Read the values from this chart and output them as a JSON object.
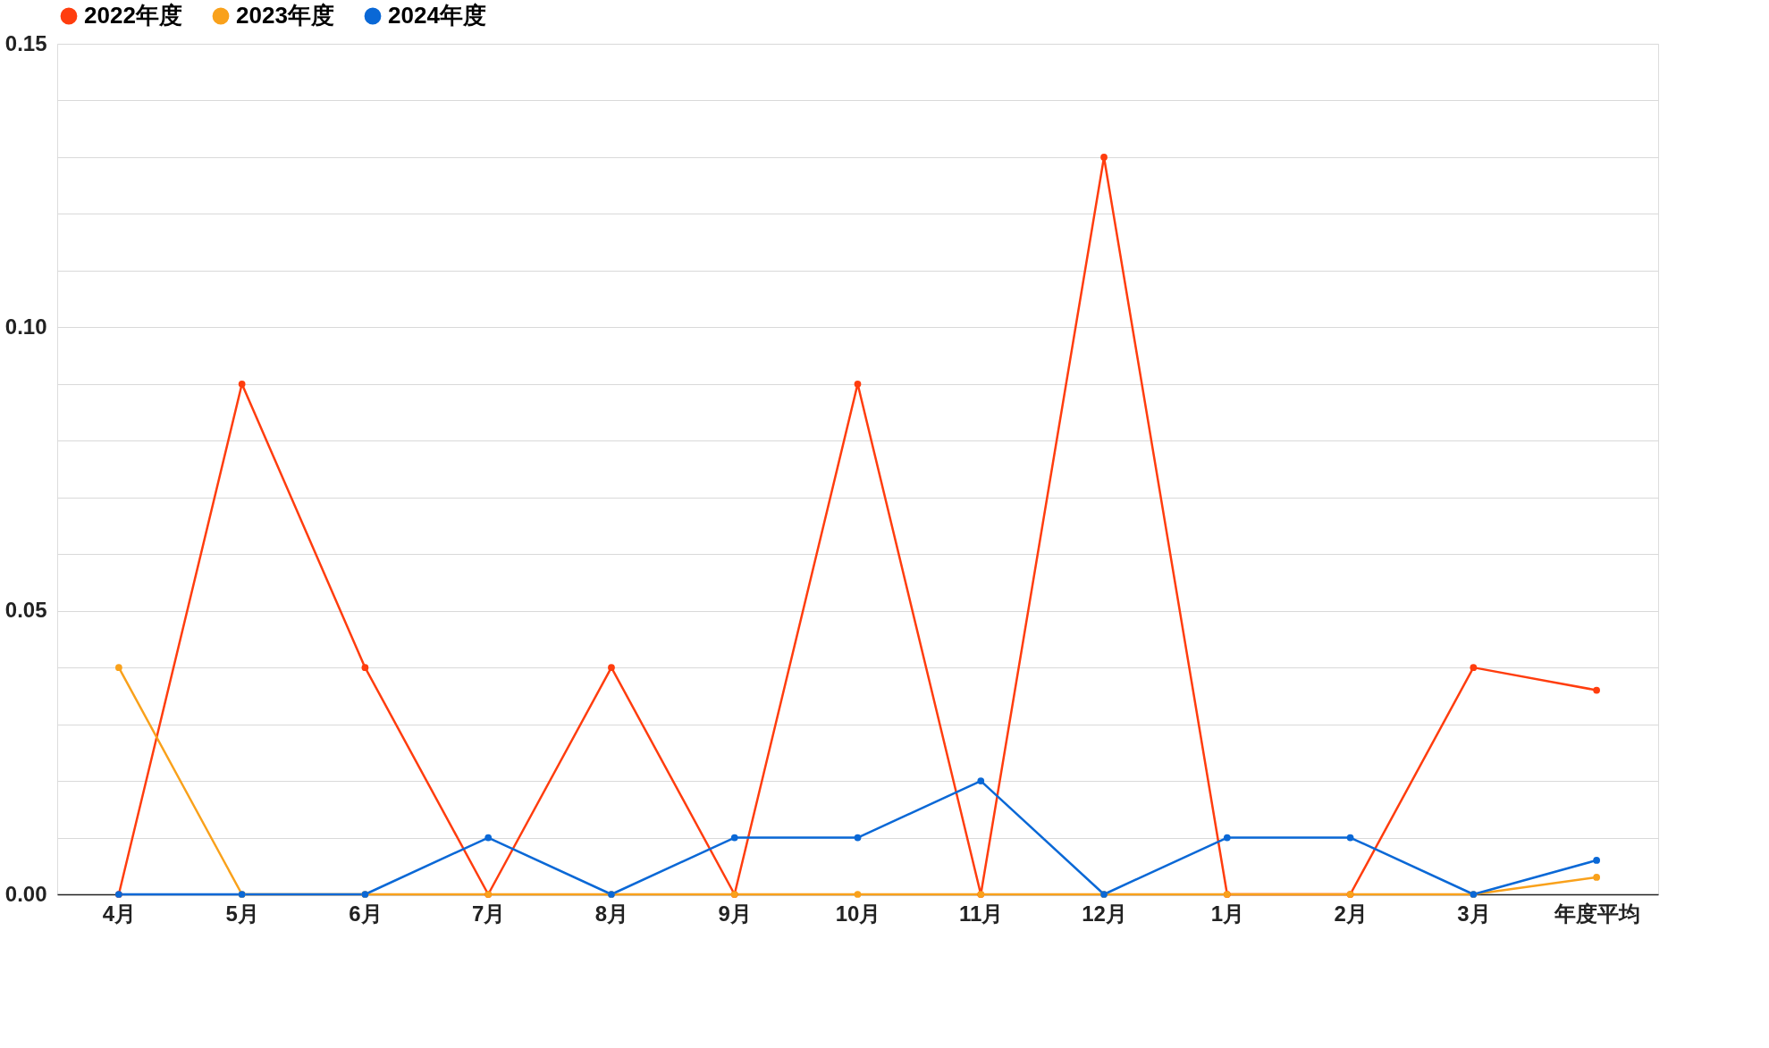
{
  "chart_data": {
    "type": "line",
    "categories": [
      "4月",
      "5月",
      "6月",
      "7月",
      "8月",
      "9月",
      "10月",
      "11月",
      "12月",
      "1月",
      "2月",
      "3月",
      "年度平均"
    ],
    "series": [
      {
        "name": "2022年度",
        "color": "#ff3d0e",
        "values": [
          0,
          0.09,
          0.04,
          0,
          0.04,
          0,
          0.09,
          0,
          0.13,
          0,
          0,
          0.04,
          0.036
        ]
      },
      {
        "name": "2023年度",
        "color": "#f9a11b",
        "values": [
          0.04,
          0,
          0,
          0,
          0,
          0,
          0,
          0,
          0,
          0,
          0,
          0,
          0.003
        ]
      },
      {
        "name": "2024年度",
        "color": "#0a68d6",
        "values": [
          0,
          0,
          0,
          0.01,
          0,
          0.01,
          0.01,
          0.02,
          0,
          0.01,
          0.01,
          0,
          0.006
        ]
      }
    ],
    "ylim": [
      0,
      0.15
    ],
    "yticks": [
      "0.00",
      {
        "value": 0.01,
        "label": null
      },
      {
        "value": 0.02,
        "label": null
      },
      {
        "value": 0.03,
        "label": null
      },
      {
        "value": 0.04,
        "label": null
      },
      0.05,
      {
        "value": 0.06,
        "label": null
      },
      {
        "value": 0.07,
        "label": null
      },
      {
        "value": 0.08,
        "label": null
      },
      {
        "value": 0.09,
        "label": null
      },
      {
        "value": 0.1,
        "label": "0.10"
      },
      {
        "value": 0.11,
        "label": null
      },
      {
        "value": 0.12,
        "label": null
      },
      {
        "value": 0.13,
        "label": null
      },
      {
        "value": 0.14,
        "label": null
      },
      0.15
    ],
    "grid": "y",
    "legend": "top",
    "marker": "circle",
    "line_style": "solid"
  }
}
